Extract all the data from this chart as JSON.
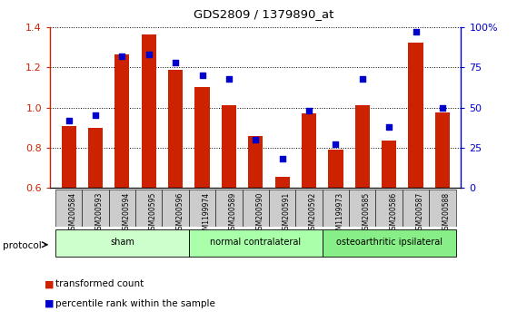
{
  "title": "GDS2809 / 1379890_at",
  "samples": [
    "GSM200584",
    "GSM200593",
    "GSM200594",
    "GSM200595",
    "GSM200596",
    "GSM1199974",
    "GSM200589",
    "GSM200590",
    "GSM200591",
    "GSM200592",
    "GSM1199973",
    "GSM200585",
    "GSM200586",
    "GSM200587",
    "GSM200588"
  ],
  "bar_values": [
    0.91,
    0.9,
    1.265,
    1.365,
    1.19,
    1.1,
    1.01,
    0.86,
    0.655,
    0.97,
    0.79,
    1.01,
    0.835,
    1.325,
    0.975
  ],
  "dot_values": [
    42,
    45,
    82,
    83,
    78,
    70,
    68,
    30,
    18,
    48,
    27,
    68,
    38,
    97,
    50
  ],
  "ylim_left": [
    0.6,
    1.4
  ],
  "ylim_right": [
    0,
    100
  ],
  "bar_color": "#cc2200",
  "dot_color": "#0000cc",
  "groups": [
    {
      "label": "sham",
      "start": 0,
      "end": 4,
      "color": "#ccffcc"
    },
    {
      "label": "normal contralateral",
      "start": 5,
      "end": 9,
      "color": "#aaffaa"
    },
    {
      "label": "osteoarthritic ipsilateral",
      "start": 10,
      "end": 14,
      "color": "#88ee88"
    }
  ],
  "yticks_left": [
    0.6,
    0.8,
    1.0,
    1.2,
    1.4
  ],
  "yticks_right": [
    0,
    25,
    50,
    75,
    100
  ],
  "left_tick_color": "#cc2200",
  "right_tick_color": "#0000cc",
  "legend_items": [
    "transformed count",
    "percentile rank within the sample"
  ],
  "sample_box_color": "#cccccc",
  "protocol_label": "protocol"
}
